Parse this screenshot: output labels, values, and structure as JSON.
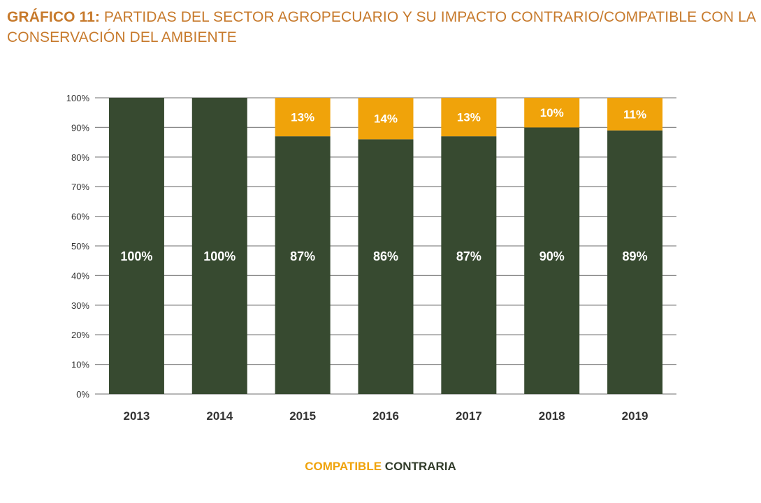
{
  "title": {
    "prefix": "GRÁFICO 11:",
    "text": "PARTIDAS DEL SECTOR AGROPECUARIO Y SU IMPACTO CONTRARIO/COMPATIBLE CON LA CONSERVACIÓN DEL AMBIENTE"
  },
  "colors": {
    "title": "#c77a2c",
    "compatible": "#f0a30a",
    "contraria": "#374a30",
    "grid": "#8a8a8a",
    "axis_text": "#333333"
  },
  "chart_data": {
    "type": "bar",
    "stacked": true,
    "categories": [
      "2013",
      "2014",
      "2015",
      "2016",
      "2017",
      "2018",
      "2019"
    ],
    "series": [
      {
        "name": "CONTRARIA",
        "values": [
          100,
          100,
          87,
          86,
          87,
          90,
          89
        ],
        "labels": [
          "100%",
          "100%",
          "87%",
          "86%",
          "87%",
          "90%",
          "89%"
        ]
      },
      {
        "name": "COMPATIBLE",
        "values": [
          0,
          0,
          13,
          14,
          13,
          10,
          11
        ],
        "labels": [
          "",
          "",
          "13%",
          "14%",
          "13%",
          "10%",
          "11%"
        ]
      }
    ],
    "ylim": [
      0,
      100
    ],
    "yticks": [
      "0%",
      "10%",
      "20%",
      "30%",
      "40%",
      "50%",
      "60%",
      "70%",
      "80%",
      "90%",
      "100%"
    ],
    "xlabel": "",
    "ylabel": "",
    "grid": true,
    "legend_position": "bottom-center"
  },
  "legend": {
    "compatible": "COMPATIBLE",
    "contraria": "CONTRARIA"
  }
}
